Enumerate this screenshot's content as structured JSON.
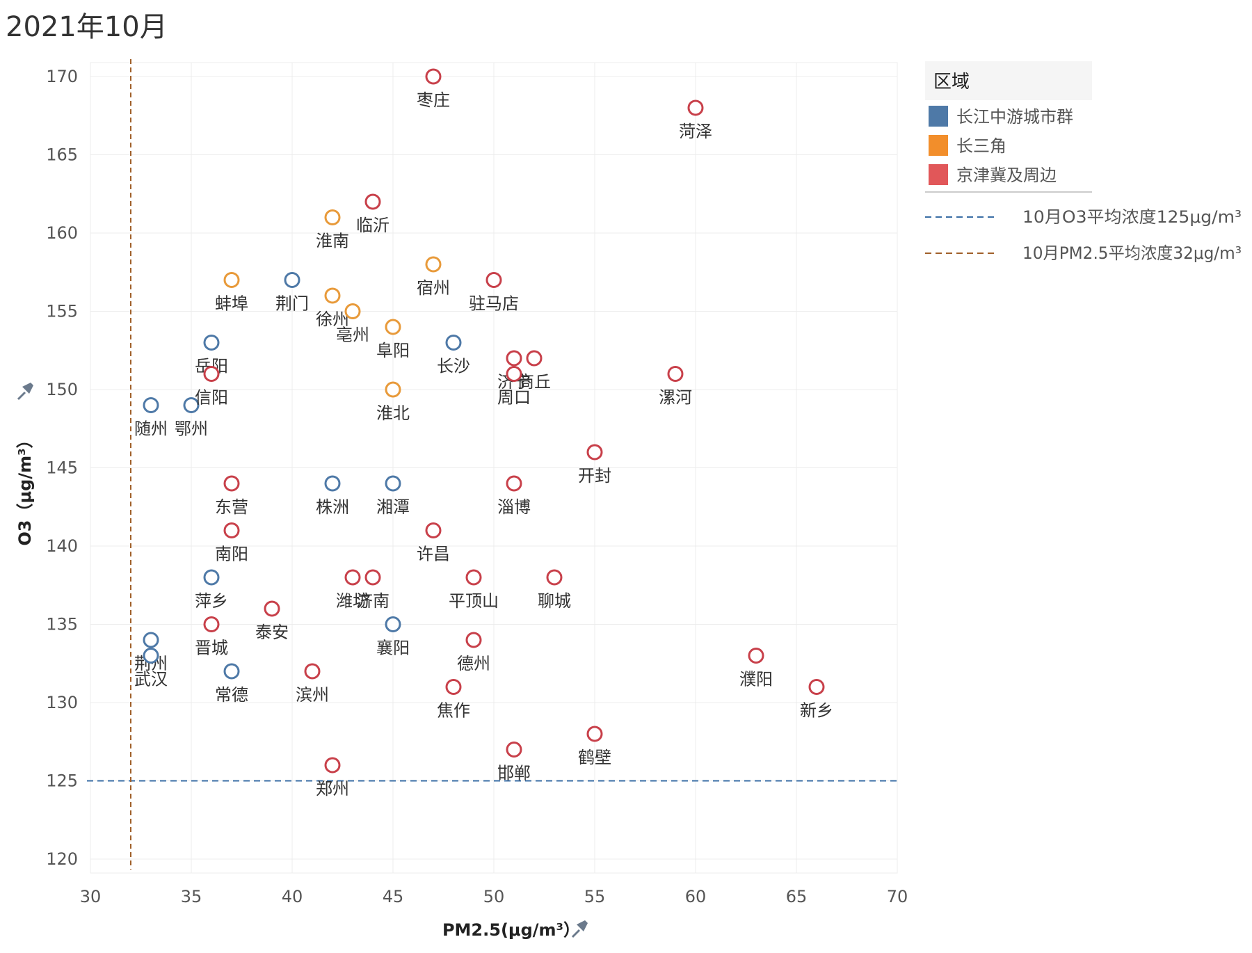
{
  "title": "2021年10月",
  "colors": {
    "yangtze_mid": "#4e79a7",
    "yangtze_delta": "#f28e2b",
    "jjj": "#e15759",
    "marker_mid": "#4e79a7",
    "marker_delta": "#e89a3a",
    "marker_jjj": "#c8404a",
    "pm_ref": "#a0602a",
    "o3_ref": "#3a6ea5"
  },
  "chart_data": {
    "type": "scatter",
    "xlabel": "PM2.5(μg/m³）",
    "ylabel": "O3（μg/m³）",
    "xlim": [
      30,
      70
    ],
    "ylim": [
      120,
      170
    ],
    "x_ticks": [
      "30",
      "35",
      "40",
      "45",
      "50",
      "55",
      "60",
      "65",
      "70"
    ],
    "y_ticks": [
      "120",
      "125",
      "130",
      "135",
      "140",
      "145",
      "150",
      "155",
      "160",
      "165",
      "170"
    ],
    "grid": true,
    "legend": {
      "title": "区域",
      "position": "right",
      "items": [
        {
          "label": "长江中游城市群",
          "color": "#4e79a7"
        },
        {
          "label": "长三角",
          "color": "#f28e2b"
        },
        {
          "label": "京津冀及周边",
          "color": "#e15759"
        }
      ],
      "ref_lines": [
        {
          "label": "10月O3平均浓度125μg/m³",
          "color": "#3a6ea5"
        },
        {
          "label": "10月PM2.5平均浓度32μg/m³",
          "color": "#a0602a"
        }
      ]
    },
    "reference_lines": {
      "o3": 125,
      "pm25": 32
    },
    "series": [
      {
        "name": "长江中游城市群",
        "color": "#4e79a7",
        "points": [
          {
            "city": "荆门",
            "x": 40,
            "y": 157
          },
          {
            "city": "岳阳",
            "x": 36,
            "y": 153
          },
          {
            "city": "长沙",
            "x": 48,
            "y": 153
          },
          {
            "city": "鄂州",
            "x": 35,
            "y": 149
          },
          {
            "city": "随州",
            "x": 33,
            "y": 149
          },
          {
            "city": "株洲",
            "x": 42,
            "y": 144
          },
          {
            "city": "湘潭",
            "x": 45,
            "y": 144
          },
          {
            "city": "萍乡",
            "x": 36,
            "y": 138
          },
          {
            "city": "襄阳",
            "x": 45,
            "y": 135
          },
          {
            "city": "荆州",
            "x": 33,
            "y": 134
          },
          {
            "city": "武汉",
            "x": 33,
            "y": 133
          },
          {
            "city": "常德",
            "x": 37,
            "y": 132
          }
        ]
      },
      {
        "name": "长三角",
        "color": "#f28e2b",
        "points": [
          {
            "city": "淮南",
            "x": 42,
            "y": 161
          },
          {
            "city": "宿州",
            "x": 47,
            "y": 158
          },
          {
            "city": "蚌埠",
            "x": 37,
            "y": 157
          },
          {
            "city": "徐州",
            "x": 42,
            "y": 156
          },
          {
            "city": "亳州",
            "x": 43,
            "y": 155
          },
          {
            "city": "阜阳",
            "x": 45,
            "y": 154
          },
          {
            "city": "淮北",
            "x": 45,
            "y": 150
          }
        ]
      },
      {
        "name": "京津冀及周边",
        "color": "#e15759",
        "points": [
          {
            "city": "枣庄",
            "x": 47,
            "y": 170
          },
          {
            "city": "菏泽",
            "x": 60,
            "y": 168
          },
          {
            "city": "临沂",
            "x": 44,
            "y": 162
          },
          {
            "city": "驻马店",
            "x": 50,
            "y": 157
          },
          {
            "city": "济宁",
            "x": 51,
            "y": 152
          },
          {
            "city": "商丘",
            "x": 52,
            "y": 152
          },
          {
            "city": "周口",
            "x": 51,
            "y": 151
          },
          {
            "city": "信阳",
            "x": 36,
            "y": 151
          },
          {
            "city": "漯河",
            "x": 59,
            "y": 151
          },
          {
            "city": "开封",
            "x": 55,
            "y": 146
          },
          {
            "city": "东营",
            "x": 37,
            "y": 144
          },
          {
            "city": "淄博",
            "x": 51,
            "y": 144
          },
          {
            "city": "南阳",
            "x": 37,
            "y": 141
          },
          {
            "city": "许昌",
            "x": 47,
            "y": 141
          },
          {
            "city": "潍坊",
            "x": 43,
            "y": 138
          },
          {
            "city": "济南",
            "x": 44,
            "y": 138
          },
          {
            "city": "平顶山",
            "x": 49,
            "y": 138
          },
          {
            "city": "聊城",
            "x": 53,
            "y": 138
          },
          {
            "city": "泰安",
            "x": 39,
            "y": 136
          },
          {
            "city": "晋城",
            "x": 36,
            "y": 135
          },
          {
            "city": "德州",
            "x": 49,
            "y": 134
          },
          {
            "city": "濮阳",
            "x": 63,
            "y": 133
          },
          {
            "city": "滨州",
            "x": 41,
            "y": 132
          },
          {
            "city": "焦作",
            "x": 48,
            "y": 131
          },
          {
            "city": "新乡",
            "x": 66,
            "y": 131
          },
          {
            "city": "鹤壁",
            "x": 55,
            "y": 128
          },
          {
            "city": "邯郸",
            "x": 51,
            "y": 127
          },
          {
            "city": "郑州",
            "x": 42,
            "y": 126
          }
        ]
      }
    ]
  }
}
